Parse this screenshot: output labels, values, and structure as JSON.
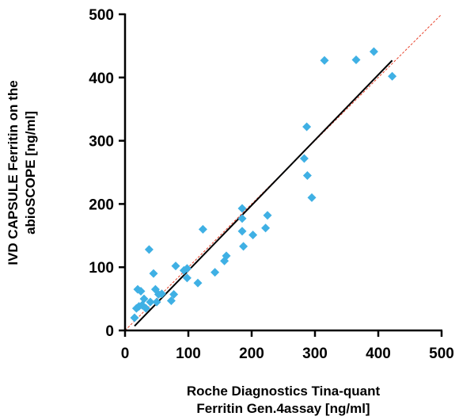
{
  "chart_data": {
    "type": "scatter",
    "xlabel_lines": [
      "Roche Diagnostics Tina-quant",
      "Ferritin Gen.4assay [ng/ml]"
    ],
    "ylabel_lines": [
      "IVD CAPSULE Ferritin on the",
      "abioSCOPE [ng/ml]"
    ],
    "xlim": [
      0,
      500
    ],
    "ylim": [
      0,
      500
    ],
    "xticks": [
      0,
      100,
      200,
      300,
      400,
      500
    ],
    "yticks": [
      0,
      100,
      200,
      300,
      400,
      500
    ],
    "grid": false,
    "marker": "diamond",
    "colors": {
      "points": "#3fb0e4",
      "fit_line": "#000000",
      "identity_line": "#e8432c",
      "axes": "#000000"
    },
    "points": [
      {
        "x": 15,
        "y": 20
      },
      {
        "x": 18,
        "y": 35
      },
      {
        "x": 20,
        "y": 65
      },
      {
        "x": 22,
        "y": 38
      },
      {
        "x": 25,
        "y": 62
      },
      {
        "x": 27,
        "y": 40
      },
      {
        "x": 30,
        "y": 50
      },
      {
        "x": 33,
        "y": 35
      },
      {
        "x": 38,
        "y": 128
      },
      {
        "x": 40,
        "y": 45
      },
      {
        "x": 45,
        "y": 90
      },
      {
        "x": 48,
        "y": 65
      },
      {
        "x": 50,
        "y": 45
      },
      {
        "x": 53,
        "y": 57
      },
      {
        "x": 58,
        "y": 58
      },
      {
        "x": 73,
        "y": 47
      },
      {
        "x": 77,
        "y": 57
      },
      {
        "x": 80,
        "y": 102
      },
      {
        "x": 93,
        "y": 95
      },
      {
        "x": 98,
        "y": 98
      },
      {
        "x": 98,
        "y": 83
      },
      {
        "x": 115,
        "y": 75
      },
      {
        "x": 123,
        "y": 160
      },
      {
        "x": 142,
        "y": 92
      },
      {
        "x": 157,
        "y": 110
      },
      {
        "x": 160,
        "y": 118
      },
      {
        "x": 185,
        "y": 193
      },
      {
        "x": 185,
        "y": 177
      },
      {
        "x": 185,
        "y": 157
      },
      {
        "x": 187,
        "y": 133
      },
      {
        "x": 202,
        "y": 151
      },
      {
        "x": 222,
        "y": 162
      },
      {
        "x": 225,
        "y": 182
      },
      {
        "x": 283,
        "y": 272
      },
      {
        "x": 287,
        "y": 322
      },
      {
        "x": 288,
        "y": 245
      },
      {
        "x": 295,
        "y": 210
      },
      {
        "x": 315,
        "y": 427
      },
      {
        "x": 365,
        "y": 428
      },
      {
        "x": 393,
        "y": 441
      },
      {
        "x": 422,
        "y": 402
      }
    ],
    "fit_line": {
      "x": [
        15,
        422
      ],
      "y": [
        7,
        427
      ]
    },
    "identity_line": {
      "x": [
        0,
        500
      ],
      "y": [
        0,
        500
      ]
    }
  }
}
